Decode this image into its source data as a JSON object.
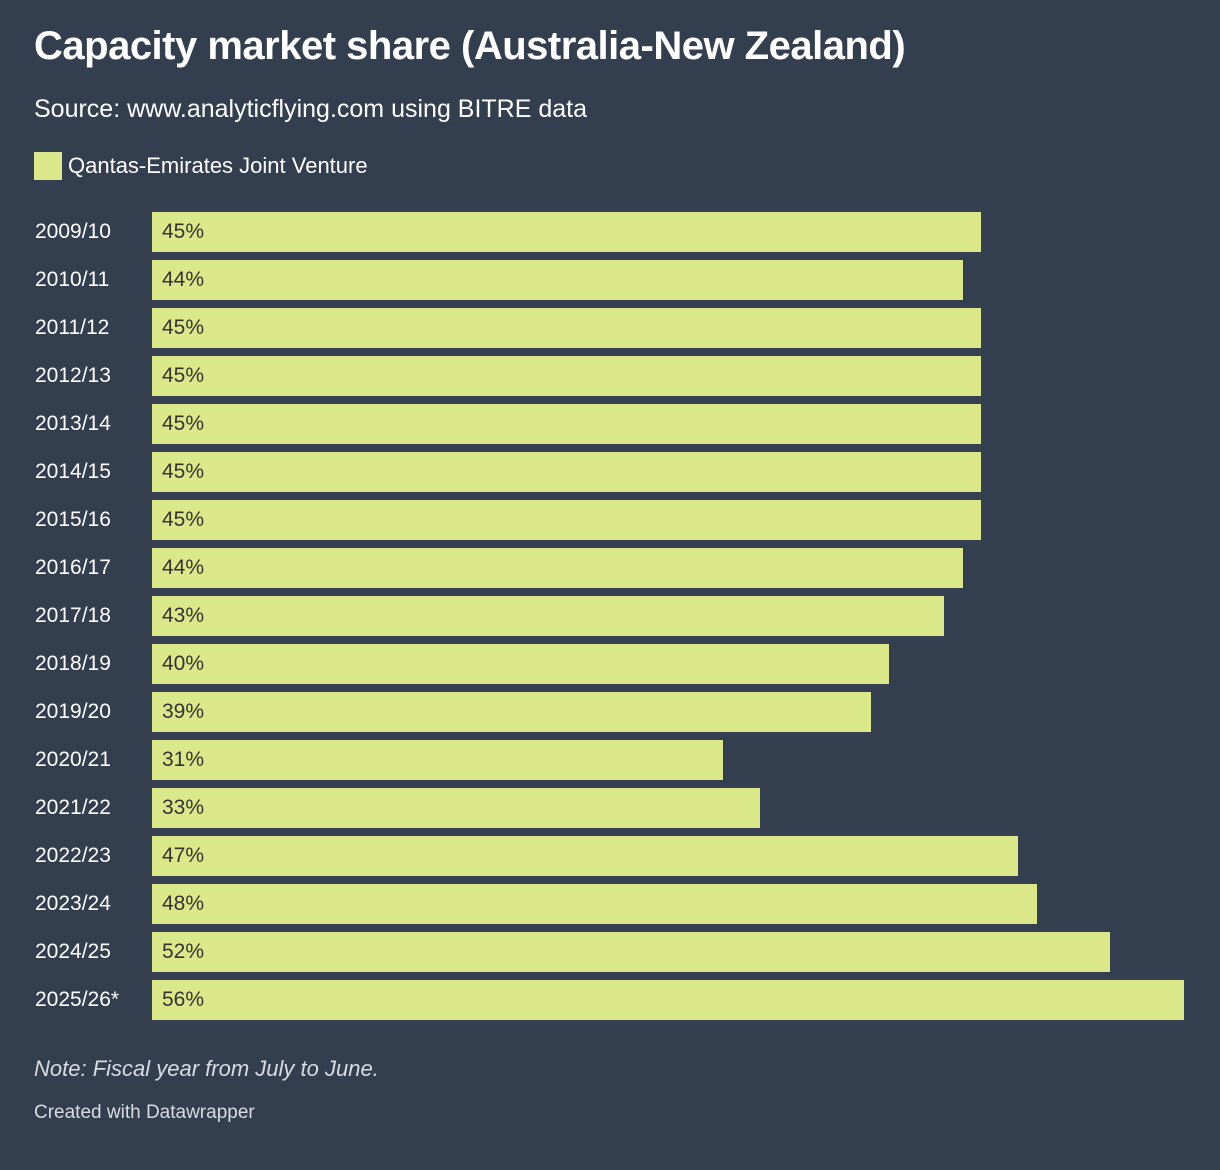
{
  "header": {
    "title": "Capacity market share (Australia-New Zealand)",
    "subtitle": "Source: www.analyticflying.com using BITRE data"
  },
  "legend": {
    "label": "Qantas-Emirates Joint Venture",
    "color": "#dbe88a"
  },
  "chart_data": {
    "type": "bar",
    "orientation": "horizontal",
    "categories": [
      "2009/10",
      "2010/11",
      "2011/12",
      "2012/13",
      "2013/14",
      "2014/15",
      "2015/16",
      "2016/17",
      "2017/18",
      "2018/19",
      "2019/20",
      "2020/21",
      "2021/22",
      "2022/23",
      "2023/24",
      "2024/25",
      "2025/26*"
    ],
    "series": [
      {
        "name": "Qantas-Emirates Joint Venture",
        "values": [
          45,
          44,
          45,
          45,
          45,
          45,
          45,
          44,
          43,
          40,
          39,
          31,
          33,
          47,
          48,
          52,
          56
        ],
        "labels": [
          "45%",
          "44%",
          "45%",
          "45%",
          "45%",
          "45%",
          "45%",
          "44%",
          "43%",
          "40%",
          "39%",
          "31%",
          "33%",
          "47%",
          "48%",
          "52%",
          "56%"
        ]
      }
    ],
    "xlim": [
      0,
      56
    ],
    "unit": "%",
    "bar_color": "#dbe88a",
    "grid": false,
    "legend_position": "top-left"
  },
  "footer": {
    "note": "Note: Fiscal year from July to June.",
    "credit": "Created with Datawrapper"
  },
  "colors": {
    "background": "#333e4f",
    "bar": "#dbe88a",
    "value_text": "#333333"
  }
}
